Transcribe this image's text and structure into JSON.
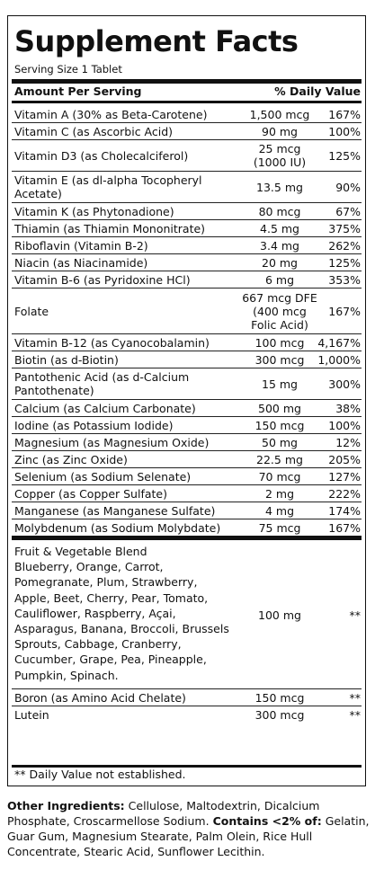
{
  "title": "Supplement Facts",
  "serving_size": "Serving Size 1 Tablet",
  "header": {
    "amount_label": "Amount Per Serving",
    "dv_label": "% Daily Value"
  },
  "nutrients": [
    {
      "name": "Vitamin A (30% as Beta-Carotene)",
      "amount": "1,500 mcg",
      "dv": "167%"
    },
    {
      "name": "Vitamin C (as Ascorbic Acid)",
      "amount": "90 mg",
      "dv": "100%"
    },
    {
      "name": "Vitamin D3 (as Cholecalciferol)",
      "amount": "25 mcg (1000 IU)",
      "dv": "125%"
    },
    {
      "name": "Vitamin E (as dl-alpha Tocopheryl Acetate)",
      "amount": "13.5 mg",
      "dv": "90%"
    },
    {
      "name": "Vitamin K (as Phytonadione)",
      "amount": "80 mcg",
      "dv": "67%"
    },
    {
      "name": "Thiamin (as Thiamin Mononitrate)",
      "amount": "4.5 mg",
      "dv": "375%"
    },
    {
      "name": "Riboflavin (Vitamin B-2)",
      "amount": "3.4 mg",
      "dv": "262%"
    },
    {
      "name": "Niacin (as Niacinamide)",
      "amount": "20 mg",
      "dv": "125%"
    },
    {
      "name": "Vitamin B-6 (as Pyridoxine HCl)",
      "amount": "6 mg",
      "dv": "353%"
    },
    {
      "name": "Folate",
      "amount": "667 mcg DFE (400 mcg Folic Acid)",
      "dv": "167%"
    },
    {
      "name": "Vitamin B-12 (as Cyanocobalamin)",
      "amount": "100 mcg",
      "dv": "4,167%"
    },
    {
      "name": "Biotin (as d-Biotin)",
      "amount": "300 mcg",
      "dv": "1,000%"
    },
    {
      "name": "Pantothenic Acid (as d-Calcium Pantothenate)",
      "amount": "15 mg",
      "dv": "300%"
    },
    {
      "name": "Calcium (as Calcium Carbonate)",
      "amount": "500 mg",
      "dv": "38%"
    },
    {
      "name": "Iodine (as Potassium Iodide)",
      "amount": "150 mcg",
      "dv": "100%"
    },
    {
      "name": "Magnesium (as Magnesium Oxide)",
      "amount": "50 mg",
      "dv": "12%"
    },
    {
      "name": "Zinc (as Zinc Oxide)",
      "amount": "22.5 mg",
      "dv": "205%"
    },
    {
      "name": "Selenium (as Sodium Selenate)",
      "amount": "70 mcg",
      "dv": "127%"
    },
    {
      "name": "Copper (as Copper Sulfate)",
      "amount": "2 mg",
      "dv": "222%"
    },
    {
      "name": "Manganese (as Manganese Sulfate)",
      "amount": "4 mg",
      "dv": "174%"
    },
    {
      "name": "Molybdenum (as Sodium Molybdate)",
      "amount": "75 mcg",
      "dv": "167%"
    }
  ],
  "blend": {
    "name": "Fruit & Vegetable Blend Blueberry, Orange, Carrot, Pomegranate, Plum, Strawberry, Apple, Beet, Cherry, Pear, Tomato, Cauliflower, Raspberry, Açai, Asparagus, Banana, Broccoli, Brussels Sprouts, Cabbage, Cranberry, Cucumber, Grape, Pea, Pineapple, Pumpkin, Spinach.",
    "amount": "100 mg",
    "dv": "**"
  },
  "extras": [
    {
      "name": "Boron (as Amino Acid Chelate)",
      "amount": "150 mcg",
      "dv": "**"
    },
    {
      "name": "Lutein",
      "amount": "300 mcg",
      "dv": "**"
    }
  ],
  "footnote": "** Daily Value not established.",
  "other_ingredients": {
    "label": "Other Ingredients:",
    "text": "Cellulose, Maltodextrin, Dicalcium Phosphate, Croscarmellose Sodium.",
    "contains_label": "Contains <2% of:",
    "contains_text": "Gelatin, Guar Gum, Magnesium Stearate, Palm Olein, Rice Hull Concentrate, Stearic Acid, Sunflower Lecithin."
  }
}
